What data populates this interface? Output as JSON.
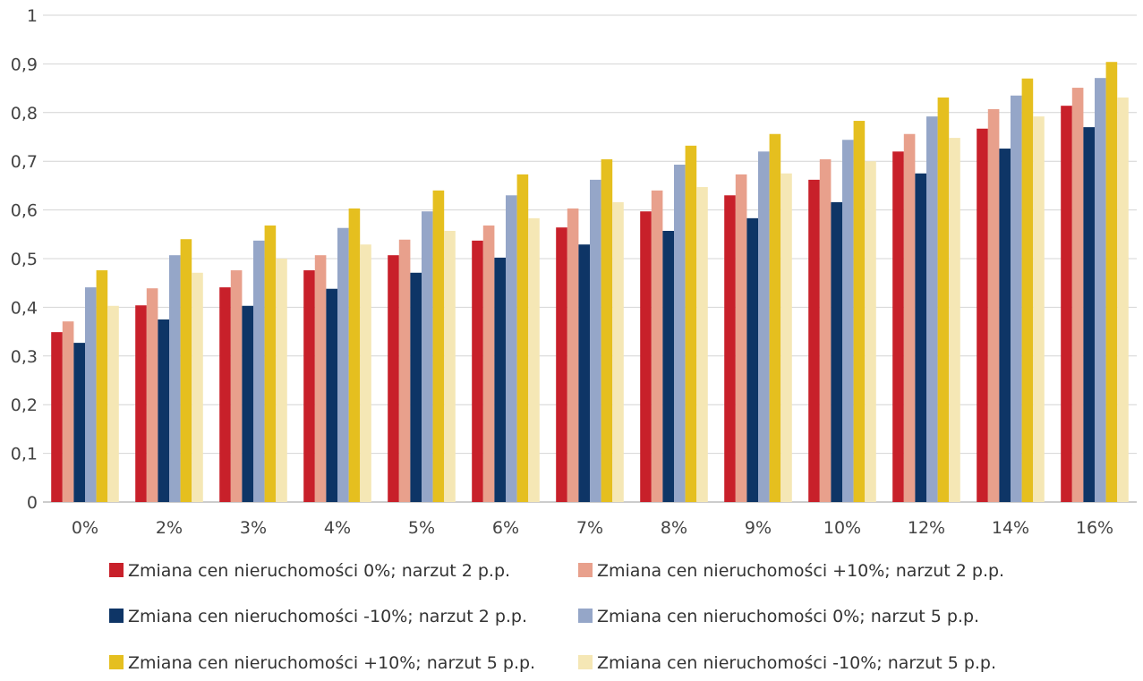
{
  "chart_data": {
    "type": "bar",
    "categories": [
      "0%",
      "2%",
      "3%",
      "4%",
      "5%",
      "6%",
      "7%",
      "8%",
      "9%",
      "10%",
      "12%",
      "14%",
      "16%"
    ],
    "ylim": [
      0,
      1
    ],
    "yticks": [
      "0",
      "0,1",
      "0,2",
      "0,3",
      "0,4",
      "0,5",
      "0,6",
      "0,7",
      "0,8",
      "0,9",
      "1"
    ],
    "grid": true,
    "legend_position": "bottom",
    "series": [
      {
        "name": "Zmiana cen nieruchomości 0%; narzut 2 p.p.",
        "color": "#c8202a",
        "values": [
          0.349,
          0.404,
          0.441,
          0.476,
          0.507,
          0.537,
          0.564,
          0.597,
          0.63,
          0.662,
          0.72,
          0.767,
          0.814
        ]
      },
      {
        "name": "Zmiana cen nieruchomości +10%; narzut 2 p.p.",
        "color": "#e8a08c",
        "values": [
          0.371,
          0.439,
          0.476,
          0.507,
          0.539,
          0.568,
          0.603,
          0.64,
          0.673,
          0.704,
          0.756,
          0.807,
          0.851
        ]
      },
      {
        "name": "Zmiana cen nieruchomości -10%; narzut 2 p.p.",
        "color": "#0e3566",
        "values": [
          0.327,
          0.375,
          0.403,
          0.438,
          0.471,
          0.502,
          0.529,
          0.557,
          0.583,
          0.616,
          0.675,
          0.726,
          0.77
        ]
      },
      {
        "name": "Zmiana cen nieruchomości 0%; narzut 5 p.p.",
        "color": "#95a6c8",
        "values": [
          0.441,
          0.507,
          0.537,
          0.563,
          0.597,
          0.63,
          0.662,
          0.693,
          0.72,
          0.744,
          0.792,
          0.835,
          0.871
        ]
      },
      {
        "name": "Zmiana cen nieruchomości +10%; narzut 5 p.p.",
        "color": "#e5bf1f",
        "values": [
          0.476,
          0.54,
          0.568,
          0.603,
          0.64,
          0.673,
          0.704,
          0.732,
          0.756,
          0.783,
          0.831,
          0.87,
          0.904
        ]
      },
      {
        "name": "Zmiana cen nieruchomości -10%; narzut 5 p.p.",
        "color": "#f5e7b5",
        "values": [
          0.403,
          0.471,
          0.5,
          0.529,
          0.557,
          0.583,
          0.616,
          0.647,
          0.675,
          0.7,
          0.748,
          0.792,
          0.831
        ]
      }
    ]
  }
}
